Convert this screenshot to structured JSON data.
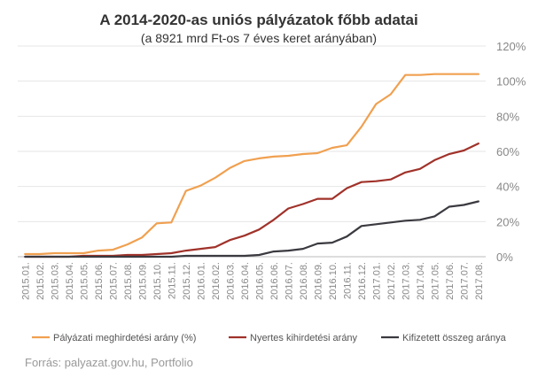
{
  "chart_data": {
    "type": "line",
    "title": "A 2014-2020-as uniós pályázatok főbb adatai",
    "subtitle": "(a 8921 mrd Ft-os 7 éves keret arányában)",
    "x": [
      "2015.01.",
      "2015.02.",
      "2015.03.",
      "2015.04.",
      "2015.05.",
      "2015.06.",
      "2015.07.",
      "2015.08.",
      "2015.09.",
      "2015.10.",
      "2015.11.",
      "2015.12.",
      "2016.01.",
      "2016.02.",
      "2016.03.",
      "2016.04.",
      "2016.05.",
      "2016.06.",
      "2016.07.",
      "2016.08.",
      "2016.09.",
      "2016.10.",
      "2016.11.",
      "2016.12.",
      "2017.01.",
      "2017.02.",
      "2017.03.",
      "2017.04.",
      "2017.05.",
      "2017.06.",
      "2017.07.",
      "2017.08."
    ],
    "ylim": [
      0,
      120
    ],
    "yticks": [
      "0%",
      "20%",
      "40%",
      "60%",
      "80%",
      "100%",
      "120%"
    ],
    "legend_position": "bottom",
    "series": [
      {
        "name": "Pályázati meghirdetési  arány (%)",
        "color": "#f0a050",
        "values": [
          1.5,
          1.5,
          2,
          2,
          2,
          3.5,
          4,
          7,
          11,
          19,
          19.5,
          37.5,
          40.5,
          45,
          50.5,
          54.5,
          56,
          57,
          57.5,
          58.5,
          59,
          62,
          63.5,
          74,
          87,
          92.5,
          103.5,
          103.5,
          104,
          104,
          104,
          104
        ]
      },
      {
        "name": "Nyertes kihirdetési  arány",
        "color": "#a0322a",
        "values": [
          0,
          0,
          0,
          0,
          0.5,
          0.5,
          0.5,
          1,
          1,
          1.5,
          2,
          3.5,
          4.5,
          5.5,
          9.5,
          12,
          15.5,
          21,
          27.5,
          30,
          33,
          33,
          39,
          42.5,
          43,
          44,
          48,
          50,
          55,
          58.5,
          60.5,
          64.5
        ]
      },
      {
        "name": "Kifizetett  összeg aránya",
        "color": "#3a3a40",
        "values": [
          0,
          0,
          0,
          0,
          0,
          0,
          0,
          0,
          0,
          0,
          0,
          0.5,
          0.5,
          0.5,
          0.5,
          0.5,
          1,
          3,
          3.5,
          4.5,
          7.5,
          8,
          11.5,
          17.5,
          18.5,
          19.5,
          20.5,
          21,
          23,
          28.5,
          29.5,
          31.5
        ]
      }
    ]
  },
  "source": "Forrás: palyazat.gov.hu, Portfolio"
}
